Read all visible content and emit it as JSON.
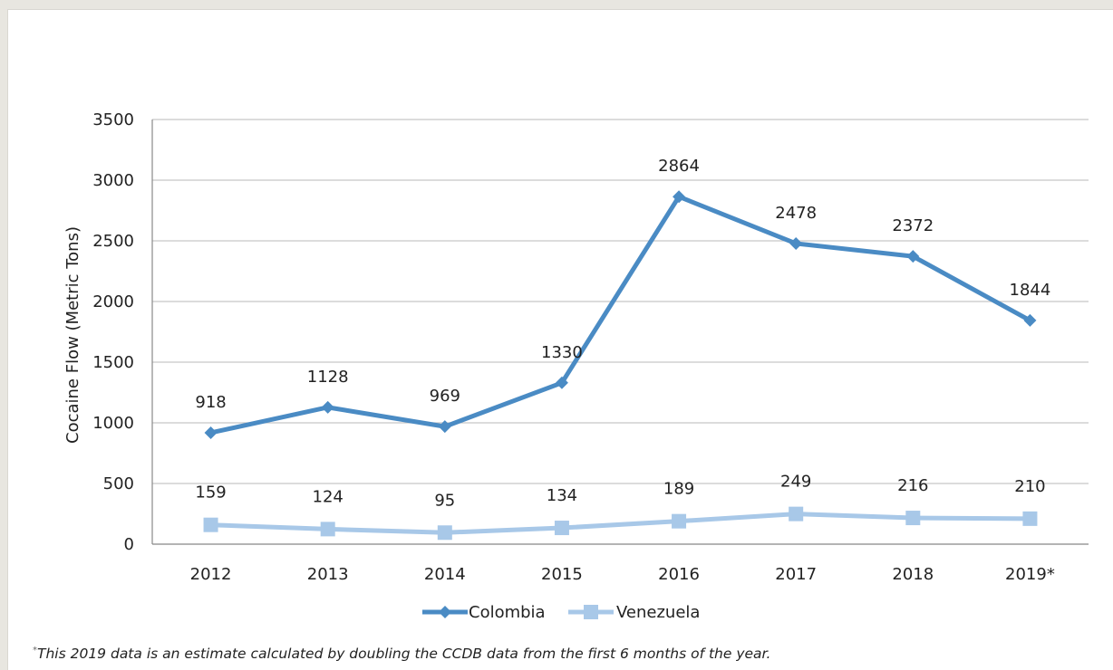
{
  "chart_data": {
    "type": "line",
    "categories": [
      "2012",
      "2013",
      "2014",
      "2015",
      "2016",
      "2017",
      "2018",
      "2019*"
    ],
    "series": [
      {
        "name": "Colombia",
        "values": [
          918,
          1128,
          969,
          1330,
          2864,
          2478,
          2372,
          1844
        ],
        "color": "#4a8bc4",
        "marker": "diamond"
      },
      {
        "name": "Venezuela",
        "values": [
          159,
          124,
          95,
          134,
          189,
          249,
          216,
          210
        ],
        "color": "#a8c8e8",
        "marker": "square"
      }
    ],
    "ylabel": "Cocaine Flow (Metric Tons)",
    "xlabel": "",
    "ylim": [
      0,
      3500
    ],
    "yticks": [
      0,
      500,
      1000,
      1500,
      2000,
      2500,
      3000,
      3500
    ],
    "grid": true,
    "legend_position": "bottom"
  },
  "footnote": {
    "marker": "*",
    "text": "This 2019 data is an estimate calculated by doubling the CCDB data from the first 6 months of the year."
  }
}
